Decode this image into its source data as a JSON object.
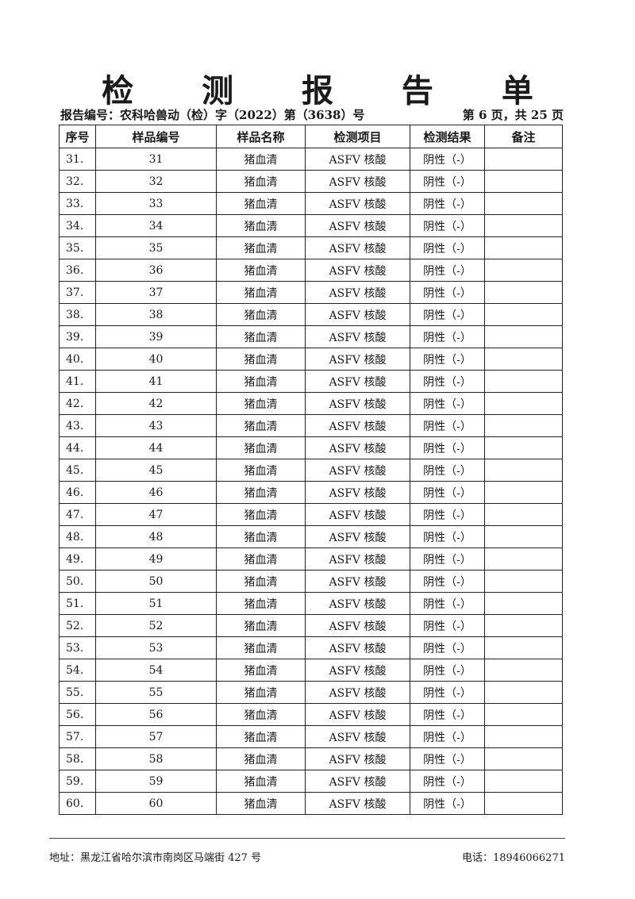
{
  "title": "检 测 报 告 单",
  "report_number": "报告编号：农科哈兽动（检）字（2022）第（3638）号",
  "page_info": "第 6 页，共 25 页",
  "columns": [
    "序号",
    "样品编号",
    "样品名称",
    "检测项目",
    "检测结果",
    "备注"
  ],
  "rows": [
    [
      "31.",
      "31",
      "猪血清",
      "ASFV 核酸",
      "阴性（-）",
      ""
    ],
    [
      "32.",
      "32",
      "猪血清",
      "ASFV 核酸",
      "阴性（-）",
      ""
    ],
    [
      "33.",
      "33",
      "猪血清",
      "ASFV 核酸",
      "阴性（-）",
      ""
    ],
    [
      "34.",
      "34",
      "猪血清",
      "ASFV 核酸",
      "阴性（-）",
      ""
    ],
    [
      "35.",
      "35",
      "猪血清",
      "ASFV 核酸",
      "阴性（-）",
      ""
    ],
    [
      "36.",
      "36",
      "猪血清",
      "ASFV 核酸",
      "阴性（-）",
      ""
    ],
    [
      "37.",
      "37",
      "猪血清",
      "ASFV 核酸",
      "阴性（-）",
      ""
    ],
    [
      "38.",
      "38",
      "猪血清",
      "ASFV 核酸",
      "阴性（-）",
      ""
    ],
    [
      "39.",
      "39",
      "猪血清",
      "ASFV 核酸",
      "阴性（-）",
      ""
    ],
    [
      "40.",
      "40",
      "猪血清",
      "ASFV 核酸",
      "阴性（-）",
      ""
    ],
    [
      "41.",
      "41",
      "猪血清",
      "ASFV 核酸",
      "阴性（-）",
      ""
    ],
    [
      "42.",
      "42",
      "猪血清",
      "ASFV 核酸",
      "阴性（-）",
      ""
    ],
    [
      "43.",
      "43",
      "猪血清",
      "ASFV 核酸",
      "阴性（-）",
      ""
    ],
    [
      "44.",
      "44",
      "猪血清",
      "ASFV 核酸",
      "阴性（-）",
      ""
    ],
    [
      "45.",
      "45",
      "猪血清",
      "ASFV 核酸",
      "阴性（-）",
      ""
    ],
    [
      "46.",
      "46",
      "猪血清",
      "ASFV 核酸",
      "阴性（-）",
      ""
    ],
    [
      "47.",
      "47",
      "猪血清",
      "ASFV 核酸",
      "阴性（-）",
      ""
    ],
    [
      "48.",
      "48",
      "猪血清",
      "ASFV 核酸",
      "阴性（-）",
      ""
    ],
    [
      "49.",
      "49",
      "猪血清",
      "ASFV 核酸",
      "阴性（-）",
      ""
    ],
    [
      "50.",
      "50",
      "猪血清",
      "ASFV 核酸",
      "阴性（-）",
      ""
    ],
    [
      "51.",
      "51",
      "猪血清",
      "ASFV 核酸",
      "阴性（-）",
      ""
    ],
    [
      "52.",
      "52",
      "猪血清",
      "ASFV 核酸",
      "阴性（-）",
      ""
    ],
    [
      "53.",
      "53",
      "猪血清",
      "ASFV 核酸",
      "阴性（-）",
      ""
    ],
    [
      "54.",
      "54",
      "猪血清",
      "ASFV 核酸",
      "阴性（-）",
      ""
    ],
    [
      "55.",
      "55",
      "猪血清",
      "ASFV 核酸",
      "阴性（-）",
      ""
    ],
    [
      "56.",
      "56",
      "猪血清",
      "ASFV 核酸",
      "阴性（-）",
      ""
    ],
    [
      "57.",
      "57",
      "猪血清",
      "ASFV 核酸",
      "阴性（-）",
      ""
    ],
    [
      "58.",
      "58",
      "猪血清",
      "ASFV 核酸",
      "阴性（-）",
      ""
    ],
    [
      "59.",
      "59",
      "猪血清",
      "ASFV 核酸",
      "阴性（-）",
      ""
    ],
    [
      "60.",
      "60",
      "猪血清",
      "ASFV 核酸",
      "阴性（-）",
      ""
    ]
  ],
  "footer": {
    "address": "地址：黑龙江省哈尔滨市南岗区马端街 427 号",
    "phone": "电话：18946066271"
  }
}
